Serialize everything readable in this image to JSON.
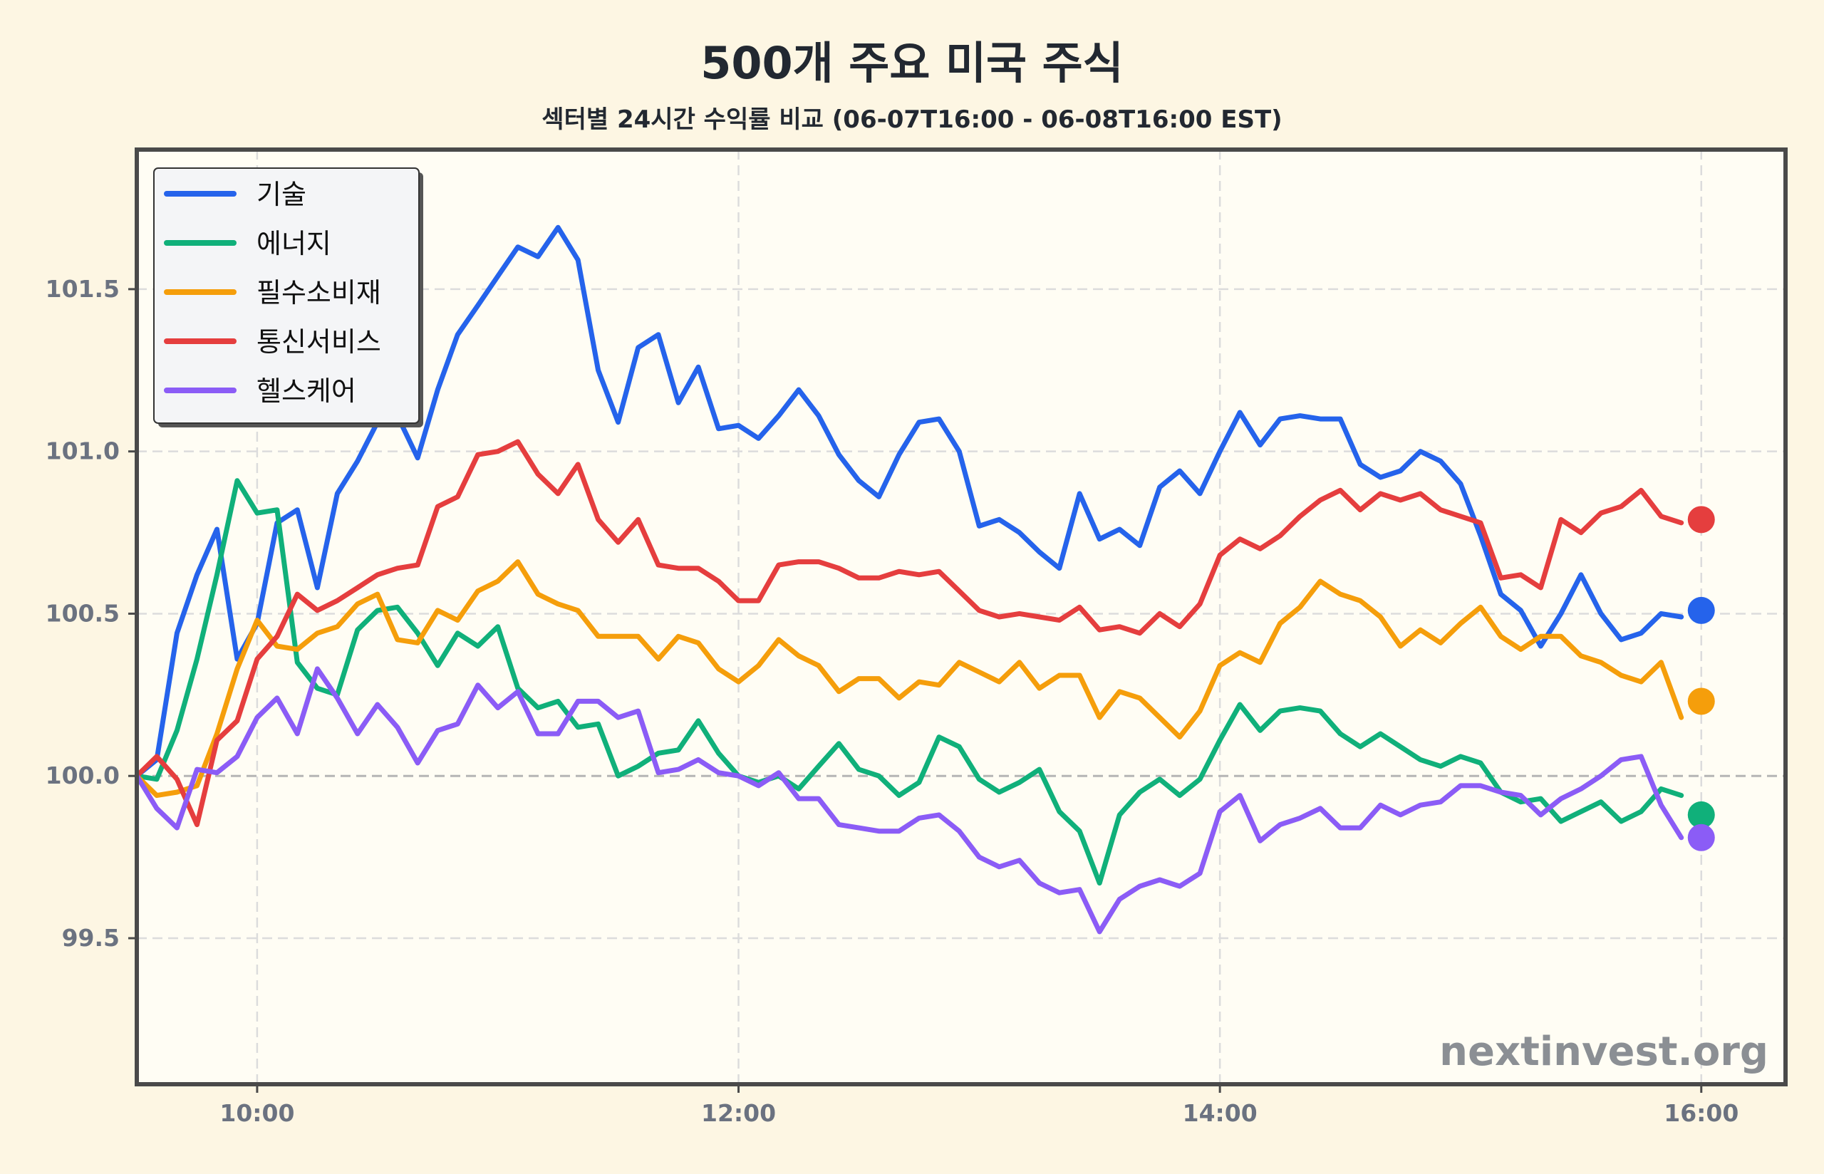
{
  "chart_data": {
    "type": "line",
    "title": "500개 주요 미국 주식",
    "subtitle": "섹터별 24시간 수익률 비교 (06-07T16:00 - 06-08T16:00 EST)",
    "xlabel": "",
    "ylabel": "",
    "x_ticks": [
      "10:00",
      "12:00",
      "14:00",
      "16:00"
    ],
    "y_ticks": [
      "99.5",
      "100.0",
      "100.5",
      "101.0",
      "101.5"
    ],
    "xlim": [
      9.5,
      16.35
    ],
    "ylim": [
      99.05,
      101.93
    ],
    "baseline": 100.0,
    "grid": true,
    "legend_position": "top-left",
    "watermark": "nextinvest.org",
    "x": [
      9.5,
      9.583,
      9.667,
      9.75,
      9.833,
      9.917,
      10.0,
      10.083,
      10.167,
      10.25,
      10.333,
      10.417,
      10.5,
      10.583,
      10.667,
      10.75,
      10.833,
      10.917,
      11.0,
      11.083,
      11.167,
      11.25,
      11.333,
      11.417,
      11.5,
      11.583,
      11.667,
      11.75,
      11.833,
      11.917,
      12.0,
      12.083,
      12.167,
      12.25,
      12.333,
      12.417,
      12.5,
      12.583,
      12.667,
      12.75,
      12.833,
      12.917,
      13.0,
      13.083,
      13.167,
      13.25,
      13.333,
      13.417,
      13.5,
      13.583,
      13.667,
      13.75,
      13.833,
      13.917,
      14.0,
      14.083,
      14.167,
      14.25,
      14.333,
      14.417,
      14.5,
      14.583,
      14.667,
      14.75,
      14.833,
      14.917,
      15.0,
      15.083,
      15.167,
      15.25,
      15.333,
      15.417,
      15.5,
      15.583,
      15.667,
      15.75,
      15.833,
      15.917
    ],
    "series": [
      {
        "name": "기술",
        "color": "#2563eb",
        "values": [
          100.0,
          100.05,
          100.44,
          100.62,
          100.76,
          100.36,
          100.47,
          100.78,
          100.82,
          100.58,
          100.87,
          100.97,
          101.09,
          101.11,
          100.98,
          101.19,
          101.36,
          101.45,
          101.54,
          101.63,
          101.6,
          101.69,
          101.59,
          101.25,
          101.09,
          101.32,
          101.36,
          101.15,
          101.26,
          101.07,
          101.08,
          101.04,
          101.11,
          101.19,
          101.11,
          100.99,
          100.91,
          100.86,
          100.99,
          101.09,
          101.1,
          101.0,
          100.77,
          100.79,
          100.75,
          100.69,
          100.64,
          100.87,
          100.73,
          100.76,
          100.71,
          100.89,
          100.94,
          100.87,
          101.0,
          101.12,
          101.02,
          101.1,
          101.11,
          101.1,
          101.1,
          100.96,
          100.92,
          100.94,
          101.0,
          100.97,
          100.9,
          100.74,
          100.56,
          100.51,
          100.4,
          100.5,
          100.62,
          100.5,
          100.42,
          100.44,
          100.5,
          100.49
        ]
      },
      {
        "name": "에너지",
        "color": "#10b07a",
        "values": [
          100.0,
          99.99,
          100.14,
          100.36,
          100.62,
          100.91,
          100.81,
          100.82,
          100.35,
          100.27,
          100.25,
          100.45,
          100.51,
          100.52,
          100.44,
          100.34,
          100.44,
          100.4,
          100.46,
          100.27,
          100.21,
          100.23,
          100.15,
          100.16,
          100.0,
          100.03,
          100.07,
          100.08,
          100.17,
          100.07,
          100.0,
          99.98,
          100.0,
          99.96,
          100.03,
          100.1,
          100.02,
          100.0,
          99.94,
          99.98,
          100.12,
          100.09,
          99.99,
          99.95,
          99.98,
          100.02,
          99.89,
          99.83,
          99.67,
          99.88,
          99.95,
          99.99,
          99.94,
          99.99,
          100.11,
          100.22,
          100.14,
          100.2,
          100.21,
          100.2,
          100.13,
          100.09,
          100.13,
          100.09,
          100.05,
          100.03,
          100.06,
          100.04,
          99.95,
          99.92,
          99.93,
          99.86,
          99.89,
          99.92,
          99.86,
          99.89,
          99.96,
          99.94
        ]
      },
      {
        "name": "필수소비재",
        "color": "#f59e0b",
        "values": [
          100.0,
          99.94,
          99.95,
          99.97,
          100.13,
          100.33,
          100.48,
          100.4,
          100.39,
          100.44,
          100.46,
          100.53,
          100.56,
          100.42,
          100.41,
          100.51,
          100.48,
          100.57,
          100.6,
          100.66,
          100.56,
          100.53,
          100.51,
          100.43,
          100.43,
          100.43,
          100.36,
          100.43,
          100.41,
          100.33,
          100.29,
          100.34,
          100.42,
          100.37,
          100.34,
          100.26,
          100.3,
          100.3,
          100.24,
          100.29,
          100.28,
          100.35,
          100.32,
          100.29,
          100.35,
          100.27,
          100.31,
          100.31,
          100.18,
          100.26,
          100.24,
          100.18,
          100.12,
          100.2,
          100.34,
          100.38,
          100.35,
          100.47,
          100.52,
          100.6,
          100.56,
          100.54,
          100.49,
          100.4,
          100.45,
          100.41,
          100.47,
          100.52,
          100.43,
          100.39,
          100.43,
          100.43,
          100.37,
          100.35,
          100.31,
          100.29,
          100.35,
          100.18
        ]
      },
      {
        "name": "통신서비스",
        "color": "#e53e3e",
        "values": [
          100.0,
          100.06,
          99.99,
          99.85,
          100.11,
          100.17,
          100.36,
          100.43,
          100.56,
          100.51,
          100.54,
          100.58,
          100.62,
          100.64,
          100.65,
          100.83,
          100.86,
          100.99,
          101.0,
          101.03,
          100.93,
          100.87,
          100.96,
          100.79,
          100.72,
          100.79,
          100.65,
          100.64,
          100.64,
          100.6,
          100.54,
          100.54,
          100.65,
          100.66,
          100.66,
          100.64,
          100.61,
          100.61,
          100.63,
          100.62,
          100.63,
          100.57,
          100.51,
          100.49,
          100.5,
          100.49,
          100.48,
          100.52,
          100.45,
          100.46,
          100.44,
          100.5,
          100.46,
          100.53,
          100.68,
          100.73,
          100.7,
          100.74,
          100.8,
          100.85,
          100.88,
          100.82,
          100.87,
          100.85,
          100.87,
          100.82,
          100.8,
          100.78,
          100.61,
          100.62,
          100.58,
          100.79,
          100.75,
          100.81,
          100.83,
          100.88,
          100.8,
          100.78
        ]
      },
      {
        "name": "헬스케어",
        "color": "#8b5cf6",
        "values": [
          100.0,
          99.9,
          99.84,
          100.02,
          100.01,
          100.06,
          100.18,
          100.24,
          100.13,
          100.33,
          100.24,
          100.13,
          100.22,
          100.15,
          100.04,
          100.14,
          100.16,
          100.28,
          100.21,
          100.26,
          100.13,
          100.13,
          100.23,
          100.23,
          100.18,
          100.2,
          100.01,
          100.02,
          100.05,
          100.01,
          100.0,
          99.97,
          100.01,
          99.93,
          99.93,
          99.85,
          99.84,
          99.83,
          99.83,
          99.87,
          99.88,
          99.83,
          99.75,
          99.72,
          99.74,
          99.67,
          99.64,
          99.65,
          99.52,
          99.62,
          99.66,
          99.68,
          99.66,
          99.7,
          99.89,
          99.94,
          99.8,
          99.85,
          99.87,
          99.9,
          99.84,
          99.84,
          99.91,
          99.88,
          99.91,
          99.92,
          99.97,
          99.97,
          99.95,
          99.94,
          99.88,
          99.93,
          99.96,
          100.0,
          100.05,
          100.06,
          99.91,
          99.81
        ]
      }
    ],
    "end_markers": [
      {
        "name": "기술",
        "x": 16.0,
        "y": 100.51
      },
      {
        "name": "에너지",
        "x": 16.0,
        "y": 99.88
      },
      {
        "name": "필수소비재",
        "x": 16.0,
        "y": 100.23
      },
      {
        "name": "통신서비스",
        "x": 16.0,
        "y": 100.79
      },
      {
        "name": "헬스케어",
        "x": 16.0,
        "y": 99.81
      }
    ]
  }
}
